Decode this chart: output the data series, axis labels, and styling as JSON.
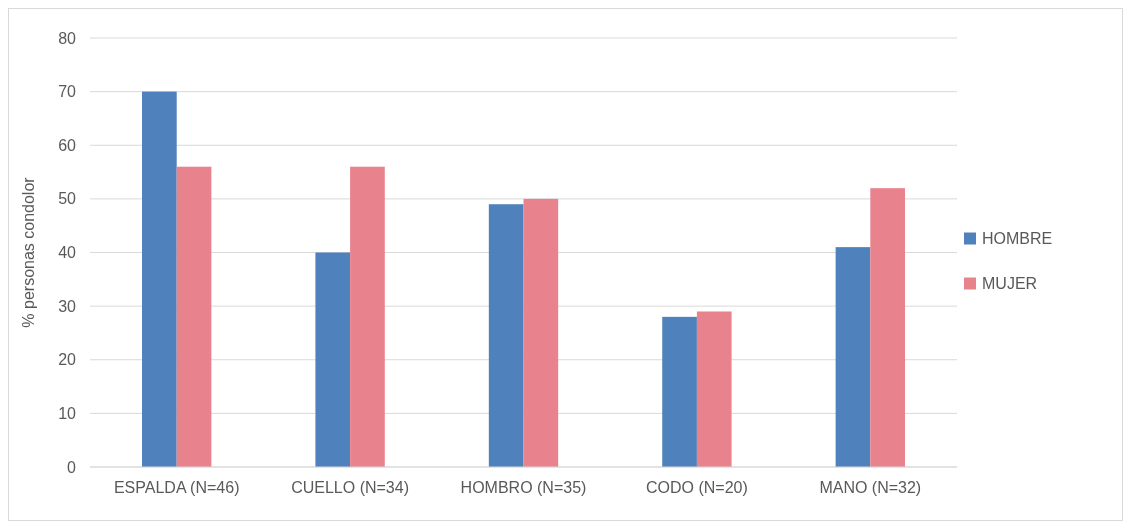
{
  "chart_data": {
    "type": "bar",
    "ylabel": "% personas condolor",
    "categories": [
      "ESPALDA (N=46)",
      "CUELLO (N=34)",
      "HOMBRO (N=35)",
      "CODO (N=20)",
      "MANO (N=32)"
    ],
    "series": [
      {
        "name": "HOMBRE",
        "color": "#4f81bd",
        "values": [
          70,
          40,
          49,
          28,
          41
        ]
      },
      {
        "name": "MUJER",
        "color": "#e8838e",
        "values": [
          56,
          56,
          50,
          29,
          52
        ]
      }
    ],
    "ylim": [
      0,
      80
    ],
    "yticks": [
      0,
      10,
      20,
      30,
      40,
      50,
      60,
      70,
      80
    ],
    "grid": "y",
    "legend": "right"
  }
}
